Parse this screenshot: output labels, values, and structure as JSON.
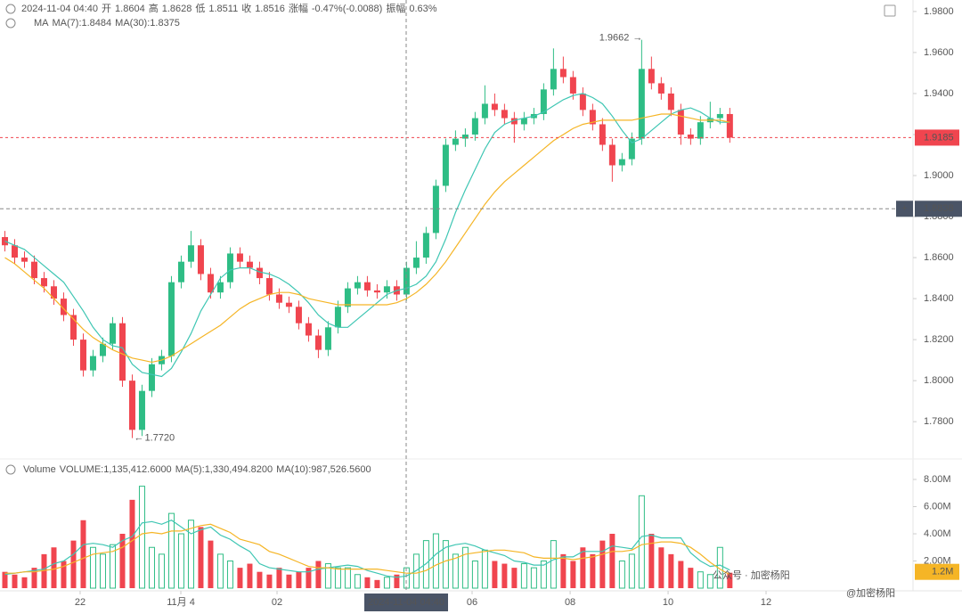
{
  "header": {
    "time": "2024-11-04 04:40",
    "fields": [
      {
        "label": "开",
        "value": "1.8604"
      },
      {
        "label": "高",
        "value": "1.8628"
      },
      {
        "label": "低",
        "value": "1.8511"
      },
      {
        "label": "收",
        "value": "1.8516"
      },
      {
        "label": "涨幅",
        "value": "-0.47%(-0.0088)"
      },
      {
        "label": "振幅",
        "value": "0.63%"
      }
    ]
  },
  "watermark": [
    "公众号 · 加密杨阳",
    "@加密杨阳"
  ],
  "chart_data": [
    {
      "type": "candlestick",
      "legend": "MA",
      "up_color": "#2ebd85",
      "down_color": "#f0454f",
      "open": [
        1.87,
        1.866,
        1.86,
        1.858,
        1.85,
        1.846,
        1.84,
        1.832,
        1.82,
        1.805,
        1.812,
        1.818,
        1.828,
        1.8,
        1.776,
        1.795,
        1.808,
        1.812,
        1.848,
        1.858,
        1.866,
        1.852,
        1.843,
        1.848,
        1.862,
        1.858,
        1.855,
        1.85,
        1.842,
        1.838,
        1.836,
        1.828,
        1.822,
        1.815,
        1.826,
        1.836,
        1.845,
        1.848,
        1.844,
        1.843,
        1.846,
        1.842,
        1.855,
        1.86,
        1.872,
        1.895,
        1.915,
        1.918,
        1.92,
        1.928,
        1.935,
        1.932,
        1.928,
        1.925,
        1.928,
        1.93,
        1.942,
        1.952,
        1.948,
        1.94,
        1.932,
        1.925,
        1.915,
        1.905,
        1.908,
        1.918,
        1.952,
        1.945,
        1.94,
        1.932,
        1.92,
        1.918,
        1.926,
        1.928,
        1.93
      ],
      "high": [
        1.873,
        1.869,
        1.863,
        1.861,
        1.853,
        1.849,
        1.843,
        1.835,
        1.823,
        1.815,
        1.821,
        1.831,
        1.831,
        1.803,
        1.798,
        1.811,
        1.815,
        1.851,
        1.861,
        1.873,
        1.869,
        1.855,
        1.851,
        1.865,
        1.865,
        1.861,
        1.858,
        1.853,
        1.845,
        1.841,
        1.839,
        1.831,
        1.825,
        1.829,
        1.839,
        1.848,
        1.851,
        1.851,
        1.847,
        1.849,
        1.849,
        1.858,
        1.868,
        1.875,
        1.898,
        1.918,
        1.922,
        1.923,
        1.931,
        1.944,
        1.94,
        1.935,
        1.931,
        1.931,
        1.933,
        1.945,
        1.962,
        1.958,
        1.951,
        1.943,
        1.935,
        1.928,
        1.918,
        1.911,
        1.921,
        1.9662,
        1.958,
        1.948,
        1.943,
        1.935,
        1.923,
        1.929,
        1.936,
        1.933,
        1.933
      ],
      "low": [
        1.863,
        1.857,
        1.855,
        1.847,
        1.843,
        1.837,
        1.829,
        1.817,
        1.802,
        1.802,
        1.809,
        1.815,
        1.797,
        1.772,
        1.773,
        1.792,
        1.805,
        1.809,
        1.845,
        1.855,
        1.849,
        1.84,
        1.84,
        1.845,
        1.855,
        1.852,
        1.847,
        1.839,
        1.835,
        1.833,
        1.825,
        1.819,
        1.811,
        1.812,
        1.823,
        1.833,
        1.842,
        1.841,
        1.84,
        1.84,
        1.839,
        1.839,
        1.852,
        1.857,
        1.869,
        1.892,
        1.912,
        1.914,
        1.917,
        1.925,
        1.929,
        1.925,
        1.916,
        1.922,
        1.925,
        1.927,
        1.939,
        1.945,
        1.937,
        1.929,
        1.922,
        1.912,
        1.897,
        1.902,
        1.905,
        1.915,
        1.942,
        1.937,
        1.929,
        1.915,
        1.915,
        1.915,
        1.923,
        1.925,
        1.916
      ],
      "close": [
        1.866,
        1.86,
        1.858,
        1.85,
        1.846,
        1.84,
        1.832,
        1.82,
        1.805,
        1.812,
        1.818,
        1.828,
        1.8,
        1.776,
        1.795,
        1.808,
        1.812,
        1.848,
        1.858,
        1.866,
        1.852,
        1.843,
        1.848,
        1.862,
        1.858,
        1.855,
        1.85,
        1.842,
        1.838,
        1.836,
        1.828,
        1.822,
        1.815,
        1.826,
        1.836,
        1.845,
        1.848,
        1.844,
        1.843,
        1.846,
        1.842,
        1.855,
        1.86,
        1.872,
        1.895,
        1.915,
        1.918,
        1.92,
        1.928,
        1.935,
        1.932,
        1.928,
        1.925,
        1.928,
        1.93,
        1.942,
        1.952,
        1.948,
        1.94,
        1.932,
        1.925,
        1.915,
        1.905,
        1.908,
        1.918,
        1.952,
        1.945,
        1.94,
        1.932,
        1.92,
        1.918,
        1.926,
        1.928,
        1.93,
        1.9185
      ],
      "series": [
        {
          "name": "MA(7):1.8484",
          "color": "#3ec6b3",
          "values": [
            1.868,
            1.866,
            1.864,
            1.86,
            1.856,
            1.852,
            1.848,
            1.841,
            1.834,
            1.826,
            1.82,
            1.817,
            1.816,
            1.808,
            1.804,
            1.803,
            1.802,
            1.806,
            1.814,
            1.823,
            1.834,
            1.842,
            1.85,
            1.854,
            1.855,
            1.855,
            1.853,
            1.852,
            1.85,
            1.847,
            1.843,
            1.838,
            1.832,
            1.828,
            1.826,
            1.826,
            1.83,
            1.834,
            1.838,
            1.842,
            1.844,
            1.845,
            1.847,
            1.851,
            1.858,
            1.869,
            1.882,
            1.893,
            1.903,
            1.913,
            1.921,
            1.925,
            1.927,
            1.928,
            1.929,
            1.931,
            1.934,
            1.937,
            1.939,
            1.94,
            1.938,
            1.935,
            1.929,
            1.922,
            1.916,
            1.918,
            1.922,
            1.926,
            1.93,
            1.932,
            1.933,
            1.931,
            1.928,
            1.926,
            1.926
          ]
        },
        {
          "name": "MA(30):1.8375",
          "color": "#f5b526",
          "values": [
            1.86,
            1.857,
            1.853,
            1.849,
            1.845,
            1.84,
            1.835,
            1.83,
            1.825,
            1.821,
            1.818,
            1.815,
            1.813,
            1.811,
            1.81,
            1.809,
            1.81,
            1.812,
            1.815,
            1.818,
            1.821,
            1.824,
            1.827,
            1.831,
            1.835,
            1.838,
            1.84,
            1.842,
            1.843,
            1.843,
            1.842,
            1.84,
            1.839,
            1.838,
            1.837,
            1.837,
            1.837,
            1.837,
            1.837,
            1.837,
            1.838,
            1.84,
            1.843,
            1.847,
            1.852,
            1.858,
            1.865,
            1.872,
            1.879,
            1.886,
            1.892,
            1.897,
            1.901,
            1.905,
            1.909,
            1.913,
            1.917,
            1.92,
            1.923,
            1.925,
            1.926,
            1.927,
            1.927,
            1.927,
            1.927,
            1.928,
            1.929,
            1.93,
            1.93,
            1.929,
            1.928,
            1.927,
            1.927,
            1.927,
            1.926
          ]
        }
      ],
      "xlim": [
        -0.5,
        92.7
      ],
      "xticks": [
        {
          "value": 7.68,
          "label": "22"
        },
        {
          "value": 17.96,
          "label": "11月 4"
        },
        {
          "value": 27.78,
          "label": "02"
        },
        {
          "value": 47.69,
          "label": "06"
        },
        {
          "value": 57.7,
          "label": "08"
        },
        {
          "value": 67.7,
          "label": "10"
        },
        {
          "value": 77.7,
          "label": "12"
        }
      ],
      "ylim": [
        1.764,
        1.9856
      ],
      "yticks": [
        {
          "value": 1.98,
          "label": "1.9800"
        },
        {
          "value": 1.96,
          "label": "1.9600"
        },
        {
          "value": 1.94,
          "label": "1.9400"
        },
        {
          "value": 1.92,
          "label": "1.9200"
        },
        {
          "value": 1.9,
          "label": "1.9000"
        },
        {
          "value": 1.88,
          "label": "1.8800"
        },
        {
          "value": 1.86,
          "label": "1.8600"
        },
        {
          "value": 1.84,
          "label": "1.8400"
        },
        {
          "value": 1.82,
          "label": "1.8200"
        },
        {
          "value": 1.8,
          "label": "1.8000"
        },
        {
          "value": 1.78,
          "label": "1.7800"
        }
      ],
      "max_label": {
        "index": 65,
        "label": "1.9662"
      },
      "min_label": {
        "index": 13,
        "label": "1.7720"
      },
      "last_price": 1.9185,
      "crosshair": {
        "price": 1.8838,
        "time": "2024-11-04 04:40"
      }
    },
    {
      "type": "bar",
      "title": "Volume",
      "value_label": "VOLUME:1,135,412.6000",
      "up_color": "#2ebd85",
      "down_color": "#f0454f",
      "values": [
        1200000,
        1000000,
        800000,
        1500000,
        2500000,
        3000000,
        2000000,
        3500000,
        5000000,
        3000000,
        2500000,
        3200000,
        4000000,
        6500000,
        7500000,
        3000000,
        2500000,
        5500000,
        4000000,
        5000000,
        4500000,
        3500000,
        2500000,
        2000000,
        1500000,
        1800000,
        1200000,
        1000000,
        1500000,
        1000000,
        1200000,
        1500000,
        2000000,
        1800000,
        1500000,
        1500000,
        1000000,
        800000,
        600000,
        800000,
        1000000,
        1500000,
        2500000,
        3500000,
        4000000,
        3500000,
        2500000,
        3000000,
        2000000,
        2800000,
        2000000,
        1800000,
        1500000,
        1800000,
        1500000,
        2000000,
        3500000,
        2500000,
        2000000,
        3000000,
        2500000,
        3500000,
        4000000,
        2000000,
        2500000,
        6800000,
        4000000,
        3000000,
        2500000,
        2000000,
        1500000,
        1200000,
        1000000,
        3000000,
        1135412.6
      ],
      "series": [
        {
          "name": "MA(5):1,330,494.8200",
          "color": "#3ec6b3",
          "values": [
            1000000,
            1100000,
            1200000,
            1300000,
            1400000,
            1800000,
            2000000,
            2500000,
            3200000,
            3300000,
            3200000,
            3000000,
            3500000,
            3800000,
            4800000,
            4900000,
            4700000,
            5000000,
            4500000,
            4000000,
            4300000,
            4500000,
            3900000,
            3600000,
            3100000,
            2700000,
            1800000,
            1500000,
            1400000,
            1300000,
            1200000,
            1200000,
            1400000,
            1500000,
            1600000,
            1700000,
            1600000,
            1300000,
            1100000,
            900000,
            800000,
            900000,
            1300000,
            1800000,
            2500000,
            3000000,
            3200000,
            3300000,
            3100000,
            2800000,
            2600000,
            2400000,
            2000000,
            1900000,
            1700000,
            1700000,
            2100000,
            2300000,
            2300000,
            2700000,
            2700000,
            2700000,
            3100000,
            3000000,
            2900000,
            3800000,
            3900000,
            3700000,
            3700000,
            3700000,
            2600000,
            2000000,
            1600000,
            1700000,
            1330494.82
          ]
        },
        {
          "name": "MA(10):987,526.5600",
          "color": "#f5b526",
          "values": [
            1100000,
            1100000,
            1200000,
            1200000,
            1300000,
            1400000,
            1600000,
            1900000,
            2200000,
            2500000,
            2600000,
            2700000,
            3000000,
            3500000,
            4000000,
            4100000,
            4000000,
            4200000,
            4200000,
            4400000,
            4600000,
            4700000,
            4400000,
            4100000,
            3600000,
            3400000,
            3200000,
            2700000,
            2500000,
            2200000,
            1900000,
            1600000,
            1500000,
            1500000,
            1400000,
            1400000,
            1400000,
            1400000,
            1400000,
            1300000,
            1200000,
            1100000,
            1100000,
            1300000,
            1700000,
            2000000,
            2200000,
            2500000,
            2600000,
            2700000,
            2800000,
            2800000,
            2700000,
            2600000,
            2300000,
            2200000,
            2200000,
            2200000,
            2100000,
            2200000,
            2300000,
            2500000,
            2700000,
            2700000,
            2800000,
            3200000,
            3300000,
            3400000,
            3400000,
            3300000,
            3000000,
            2500000,
            1900000,
            1400000,
            987526.56
          ]
        }
      ],
      "ylim": [
        0,
        9180000
      ],
      "yticks": [
        {
          "value": 8000000,
          "label": "8.00M"
        },
        {
          "value": 6000000,
          "label": "6.00M"
        },
        {
          "value": 4000000,
          "label": "4.00M"
        },
        {
          "value": 2000000,
          "label": "2.00M"
        }
      ],
      "tag": {
        "value": 1200000,
        "label": "1.2M"
      }
    }
  ]
}
